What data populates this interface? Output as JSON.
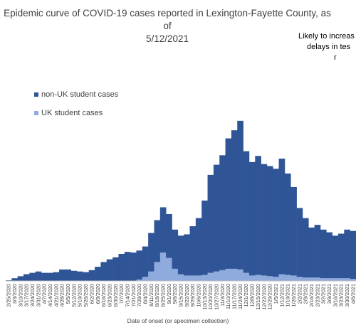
{
  "chart_data": {
    "type": "bar",
    "stacked": true,
    "title_lines": [
      "Epidemic curve of COVID-19 cases reported in Lexington-Fayette County, as of",
      "5/12/2021"
    ],
    "annotation_lines": [
      "Likely to increas",
      "delays in tes",
      "r"
    ],
    "xlabel": "Date of onset (or specimen collection)",
    "ylabel": "",
    "legend_position": "top-left",
    "categories": [
      "2/25/2020",
      "3/3/2020",
      "3/10/2020",
      "3/17/2020",
      "3/24/2020",
      "3/31/2020",
      "4/7/2020",
      "4/14/2020",
      "4/21/2020",
      "4/28/2020",
      "5/5/2020",
      "5/12/2020",
      "5/19/2020",
      "5/26/2020",
      "6/2/2020",
      "6/9/2020",
      "6/16/2020",
      "6/23/2020",
      "6/30/2020",
      "7/7/2020",
      "7/14/2020",
      "7/21/2020",
      "7/28/2020",
      "8/4/2020",
      "8/11/2020",
      "8/18/2020",
      "8/25/2020",
      "9/1/2020",
      "9/8/2020",
      "9/15/2020",
      "9/22/2020",
      "9/29/2020",
      "10/6/2020",
      "10/13/2020",
      "10/20/2020",
      "10/27/2020",
      "11/3/2020",
      "11/10/2020",
      "11/17/2020",
      "11/24/2020",
      "12/1/2020",
      "12/8/2020",
      "12/15/2020",
      "12/22/2020",
      "12/29/2020",
      "1/5/2021",
      "1/12/2021",
      "1/19/2021",
      "1/26/2021",
      "2/2/2021",
      "2/9/2021",
      "2/16/2021",
      "2/23/2021",
      "3/2/2021",
      "3/9/2021",
      "3/16/2021",
      "3/23/2021",
      "3/30/2021",
      "4/6/2021"
    ],
    "x_range": [
      "2/25/2020",
      "4/6/2021"
    ],
    "ylim": [
      0,
      300
    ],
    "series": [
      {
        "name": "non-UK student cases",
        "color": "#2F5597",
        "values": [
          1,
          4,
          7,
          10,
          12,
          14,
          12,
          12,
          13,
          17,
          17,
          15,
          14,
          13,
          16,
          21,
          28,
          32,
          35,
          40,
          43,
          42,
          43,
          45,
          57,
          62,
          67,
          65,
          58,
          57,
          61,
          73,
          85,
          110,
          145,
          158,
          170,
          193,
          205,
          220,
          180,
          168,
          176,
          165,
          163,
          160,
          171,
          150,
          131,
          102,
          88,
          74,
          78,
          72,
          68,
          63,
          66,
          72,
          71
        ]
      },
      {
        "name": "UK student cases",
        "color": "#8FAADC",
        "values": [
          0,
          0,
          0,
          0,
          0,
          0,
          0,
          0,
          0,
          0,
          0,
          0,
          0,
          0,
          0,
          0,
          0,
          0,
          0,
          0,
          0,
          0,
          2,
          6,
          14,
          28,
          42,
          34,
          18,
          10,
          8,
          8,
          8,
          9,
          12,
          14,
          16,
          18,
          18,
          17,
          12,
          8,
          9,
          8,
          7,
          6,
          10,
          9,
          8,
          6,
          5,
          5,
          5,
          4,
          4,
          4,
          4,
          4,
          3
        ]
      }
    ]
  }
}
